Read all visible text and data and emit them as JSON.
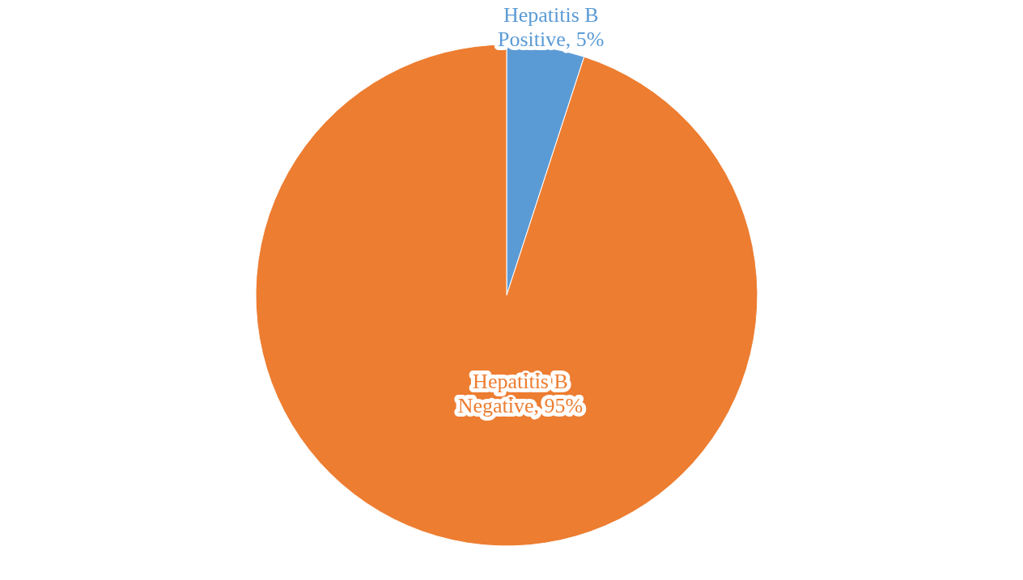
{
  "chart_data": {
    "type": "pie",
    "categories": [
      "Hepatitis B Positive",
      "Hepatitis B Negative"
    ],
    "values": [
      5,
      95
    ],
    "colors": [
      "#5b9bd5",
      "#ed7d31"
    ],
    "value_labels": [
      "5%",
      "95%"
    ],
    "legend": false
  }
}
